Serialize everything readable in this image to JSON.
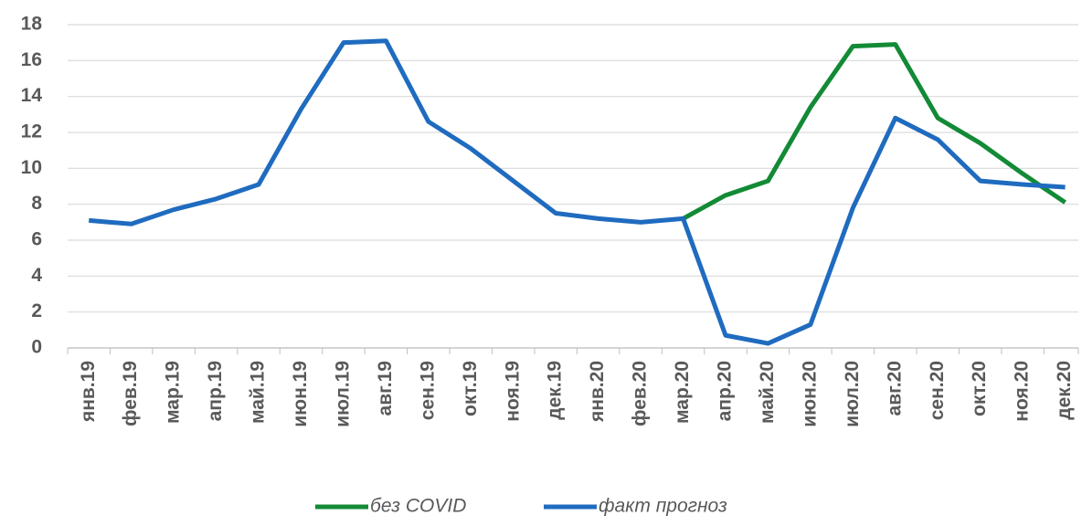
{
  "chart_data": {
    "type": "line",
    "categories": [
      "янв.19",
      "фев.19",
      "мар.19",
      "апр.19",
      "май.19",
      "июн.19",
      "июл.19",
      "авг.19",
      "сен.19",
      "окт.19",
      "ноя.19",
      "дек.19",
      "янв.20",
      "фев.20",
      "мар.20",
      "апр.20",
      "май.20",
      "июн.20",
      "июл.20",
      "авг.20",
      "сен.20",
      "окт.20",
      "ноя.20",
      "дек.20"
    ],
    "series": [
      {
        "name": "без COVID",
        "color": "#138a36",
        "values": [
          null,
          null,
          null,
          null,
          null,
          null,
          null,
          null,
          null,
          null,
          null,
          null,
          null,
          null,
          7.2,
          8.5,
          9.3,
          13.4,
          16.8,
          16.9,
          12.8,
          11.4,
          9.7,
          8.1
        ]
      },
      {
        "name": "факт прогноз",
        "color": "#1f6bbf",
        "values": [
          7.1,
          6.9,
          7.7,
          8.3,
          9.1,
          13.3,
          17.0,
          17.1,
          12.6,
          11.1,
          9.3,
          7.5,
          7.2,
          7.0,
          7.2,
          0.7,
          0.25,
          1.3,
          7.8,
          12.8,
          11.6,
          9.3,
          9.1,
          8.95
        ]
      }
    ],
    "ylim": [
      0,
      18
    ],
    "yticks": [
      0,
      2,
      4,
      6,
      8,
      10,
      12,
      14,
      16,
      18
    ],
    "grid": true,
    "legend": "bottom"
  }
}
